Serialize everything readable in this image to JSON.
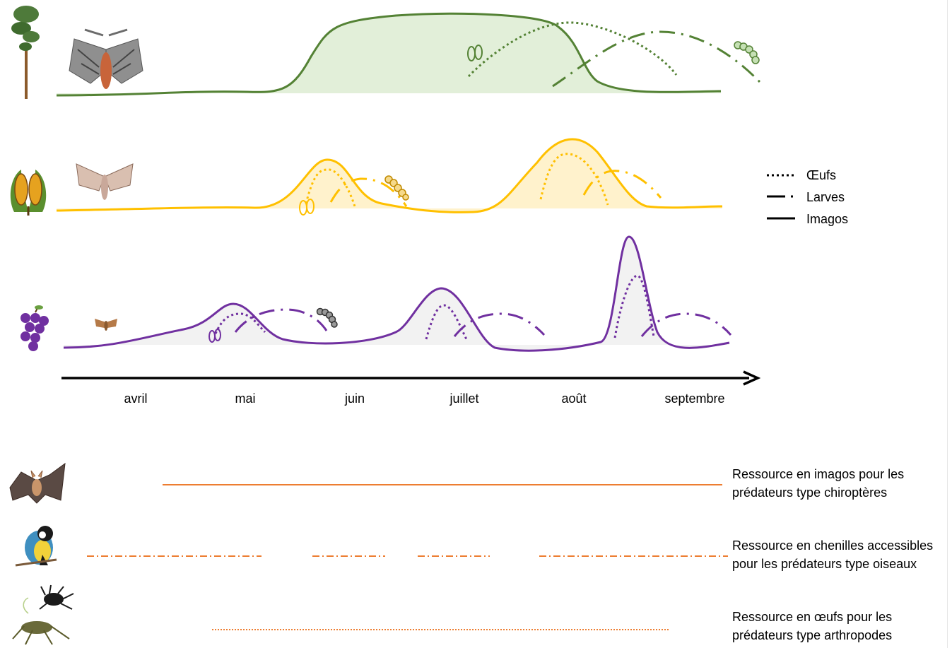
{
  "months": [
    "avril",
    "mai",
    "juin",
    "juillet",
    "août",
    "septembre"
  ],
  "legend": [
    {
      "style": "dotted",
      "label": "Œufs"
    },
    {
      "style": "dashdot",
      "label": "Larves"
    },
    {
      "style": "solid",
      "label": "Imagos"
    }
  ],
  "species_rows": [
    {
      "host": "pine-tree",
      "insect": "pine-processionary-moth",
      "color": "#548235",
      "fill": "#e2efd9"
    },
    {
      "host": "corn-cob",
      "insect": "corn-borer-moth",
      "color": "#ffc000",
      "fill": "#fff2cc"
    },
    {
      "host": "grape-bunch",
      "insect": "grape-berry-moth",
      "color": "#7030a0",
      "fill": "#f2f2f2"
    }
  ],
  "resources": [
    {
      "predator": "bat",
      "line_style": "solid",
      "color": "#ed7d31",
      "line1": "Ressource en imagos pour les",
      "line2": "prédateurs type chiroptères"
    },
    {
      "predator": "bird",
      "line_style": "dashdot",
      "color": "#ed7d31",
      "line1": "Ressource en chenilles accessibles",
      "line2": "pour les prédateurs type oiseaux"
    },
    {
      "predator": "arthropod",
      "line_style": "dotted",
      "color": "#ed7d31",
      "line1": "Ressource en œufs pour les",
      "line2": "prédateurs type arthropodes"
    }
  ]
}
